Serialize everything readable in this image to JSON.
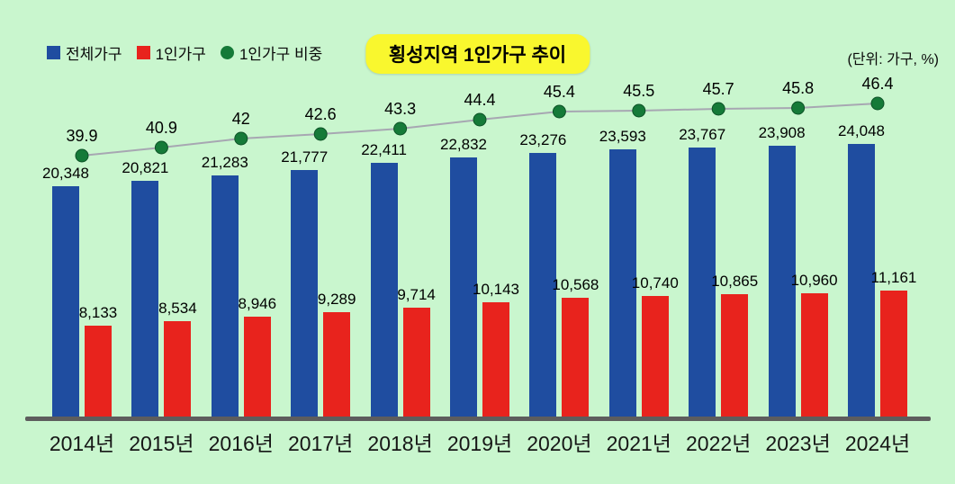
{
  "header": {
    "title": "횡성지역 1인가구 추이",
    "unit_label": "(단위: 가구, %)"
  },
  "legend": {
    "items": [
      {
        "label": "전체가구",
        "color": "#1f4da0",
        "shape": "square"
      },
      {
        "label": "1인가구",
        "color": "#e8231d",
        "shape": "square"
      },
      {
        "label": "1인가구 비중",
        "color": "#157a38",
        "shape": "circle"
      }
    ]
  },
  "chart_data": {
    "type": "bar",
    "subtype": "grouped bars with overlaid percentage line",
    "title": "횡성지역 1인가구 추이",
    "unit": "(단위: 가구, %)",
    "grid": false,
    "legend_position": "top-left",
    "categories": [
      "2014년",
      "2015년",
      "2016년",
      "2017년",
      "2018년",
      "2019년",
      "2020년",
      "2021년",
      "2022년",
      "2023년",
      "2024년"
    ],
    "series": [
      {
        "name": "전체가구",
        "type": "bar",
        "color": "#1f4da0",
        "values": [
          20348,
          20821,
          21283,
          21777,
          22411,
          22832,
          23276,
          23593,
          23767,
          23908,
          24048
        ],
        "labels": [
          "20,348",
          "20,821",
          "21,283",
          "21,777",
          "22,411",
          "22,832",
          "23,276",
          "23,593",
          "23,767",
          "23,908",
          "24,048"
        ]
      },
      {
        "name": "1인가구",
        "type": "bar",
        "color": "#e8231d",
        "values": [
          8133,
          8534,
          8946,
          9289,
          9714,
          10143,
          10568,
          10740,
          10865,
          10960,
          11161
        ],
        "labels": [
          "8,133",
          "8,534",
          "8,946",
          "9,289",
          "9,714",
          "10,143",
          "10,568",
          "10,740",
          "10,865",
          "10,960",
          "11,161"
        ]
      },
      {
        "name": "1인가구 비중",
        "type": "line",
        "color": "#157a38",
        "line_color": "#a7a7b2",
        "values": [
          39.9,
          40.9,
          42,
          42.6,
          43.3,
          44.4,
          45.4,
          45.5,
          45.7,
          45.8,
          46.4
        ],
        "labels": [
          "39.9",
          "40.9",
          "42",
          "42.6",
          "43.3",
          "44.4",
          "45.4",
          "45.5",
          "45.7",
          "45.8",
          "46.4"
        ]
      }
    ],
    "bar_axis": {
      "min": 0,
      "max": 24048
    },
    "line_axis": {
      "min": 39.9,
      "max": 46.4
    }
  },
  "colors": {
    "background": "#c9f6ce",
    "title_bg": "#f9f72e",
    "axis": "#5d5d5d",
    "text": "#000000"
  }
}
